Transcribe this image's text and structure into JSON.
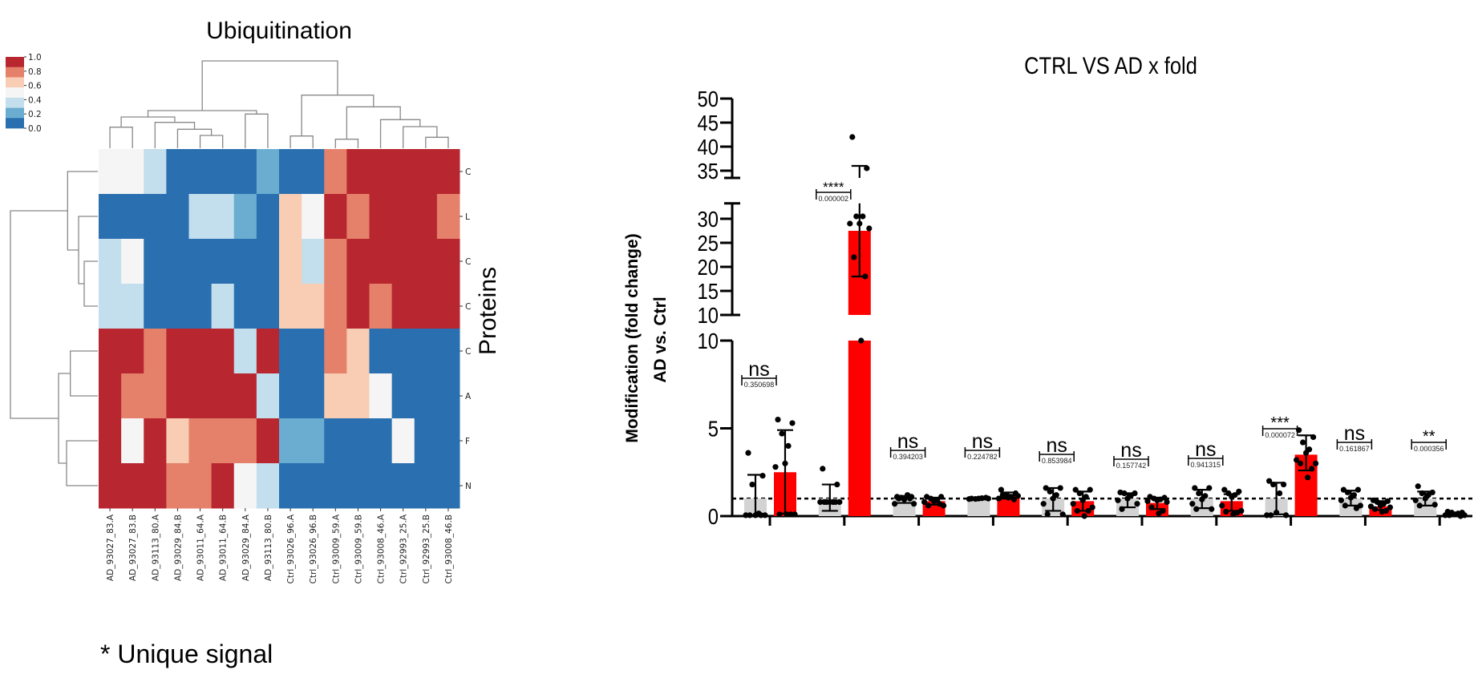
{
  "figure": {
    "footnote": "* Unique signal"
  },
  "chart_data": [
    {
      "type": "heatmap",
      "title": "Ubiquitination",
      "ylabel": "Proteins",
      "columns": [
        "AD_93027_83.A",
        "AD_93027_83.B",
        "AD_93113_80.A",
        "AD_93029_84.B",
        "AD_93011_64.A",
        "AD_93011_64.B",
        "AD_93029_84.A",
        "AD_93113_80.B",
        "Ctrl_93026_96.A",
        "Ctrl_93026_96.B",
        "Ctrl_93009_59.A",
        "Ctrl_93009_59.B",
        "Ctrl_93008_46.A",
        "Ctrl_92993_25.A",
        "Ctrl_92993_25.B",
        "Ctrl_93008_46.B"
      ],
      "row_labels": [
        "C",
        "L",
        "C",
        "C",
        "C",
        "A",
        "F",
        "N"
      ],
      "vmin": 0,
      "vmax": 1,
      "values": [
        [
          0.5,
          0.5,
          0.35,
          0.05,
          0.05,
          0.05,
          0.05,
          0.2,
          0.05,
          0.05,
          0.75,
          0.95,
          0.95,
          0.95,
          0.95,
          0.95
        ],
        [
          0.05,
          0.05,
          0.05,
          0.05,
          0.35,
          0.35,
          0.2,
          0.05,
          0.6,
          0.5,
          0.95,
          0.75,
          0.95,
          0.95,
          0.95,
          0.75
        ],
        [
          0.35,
          0.5,
          0.05,
          0.05,
          0.05,
          0.05,
          0.05,
          0.05,
          0.6,
          0.35,
          0.75,
          0.95,
          0.95,
          0.95,
          0.95,
          0.95
        ],
        [
          0.35,
          0.35,
          0.05,
          0.05,
          0.05,
          0.35,
          0.05,
          0.05,
          0.6,
          0.6,
          0.75,
          0.95,
          0.75,
          0.95,
          0.95,
          0.95
        ],
        [
          0.95,
          0.95,
          0.75,
          0.95,
          0.95,
          0.95,
          0.35,
          0.95,
          0.05,
          0.05,
          0.75,
          0.6,
          0.05,
          0.05,
          0.05,
          0.05
        ],
        [
          0.95,
          0.75,
          0.75,
          0.95,
          0.95,
          0.95,
          0.95,
          0.35,
          0.05,
          0.05,
          0.6,
          0.6,
          0.5,
          0.05,
          0.05,
          0.05
        ],
        [
          0.95,
          0.5,
          0.95,
          0.6,
          0.75,
          0.75,
          0.75,
          0.95,
          0.2,
          0.2,
          0.05,
          0.05,
          0.05,
          0.5,
          0.05,
          0.05
        ],
        [
          0.95,
          0.95,
          0.95,
          0.75,
          0.75,
          0.95,
          0.5,
          0.35,
          0.05,
          0.05,
          0.05,
          0.05,
          0.05,
          0.05,
          0.05,
          0.05
        ]
      ],
      "colorbar": {
        "ticks": [
          "1.0",
          "0.8",
          "0.6",
          "0.4",
          "0.2",
          "0.0"
        ],
        "colors": [
          "#2a6faf",
          "#6aadd1",
          "#c3deec",
          "#f5f5f5",
          "#f8cdb4",
          "#e5816a",
          "#b8262f"
        ]
      },
      "col_dendrogram": [
        [
          0,
          1,
          79
        ],
        [
          4,
          5,
          48
        ],
        [
          3,
          17,
          71
        ],
        [
          2,
          18,
          97
        ],
        [
          16,
          19,
          117
        ],
        [
          6,
          7,
          128
        ],
        [
          20,
          21,
          141
        ],
        [
          8,
          9,
          46
        ],
        [
          10,
          11,
          34
        ],
        [
          14,
          15,
          41
        ],
        [
          13,
          25,
          81
        ],
        [
          12,
          26,
          107
        ],
        [
          24,
          27,
          155
        ],
        [
          23,
          28,
          199
        ],
        [
          22,
          29,
          327
        ]
      ],
      "row_dendrogram": [
        [
          2,
          3,
          51
        ],
        [
          1,
          8,
          72
        ],
        [
          0,
          9,
          113
        ],
        [
          4,
          5,
          103
        ],
        [
          6,
          7,
          117
        ],
        [
          11,
          12,
          147
        ],
        [
          10,
          13,
          327
        ]
      ]
    },
    {
      "type": "bar",
      "title": "CTRL VS AD x fold",
      "ylabel": [
        "Modification (fold change)",
        "AD vs. Ctrl"
      ],
      "yticks": [
        "0",
        "5",
        "10",
        "10",
        "15",
        "20",
        "25",
        "30",
        "35",
        "40",
        "45",
        "50"
      ],
      "ytick_values": [
        0,
        5,
        10,
        10,
        15,
        20,
        25,
        30,
        35,
        40,
        45,
        50
      ],
      "y_segments": [
        [
          0,
          10
        ],
        [
          10,
          33.2
        ],
        [
          33.5,
          50
        ]
      ],
      "reference_line": 1,
      "colors": {
        "ctrl": "#d3d3d3",
        "ad": "#ff0000"
      },
      "series": [
        "CTRL",
        "AD"
      ],
      "groups": [
        {
          "sig": "ns",
          "p": "0.350698",
          "ctrl": {
            "mean": 1.0,
            "error": [
              0.05,
              2.35
            ],
            "points": [
              3.6,
              2.3,
              1.8,
              0.15,
              0.05,
              0.05,
              0.05,
              0.05,
              0.05
            ]
          },
          "ad": {
            "mean": 2.5,
            "error": [
              0.15,
              4.9
            ],
            "points": [
              5.5,
              5.3,
              4.7,
              4.0,
              3.0,
              2.8,
              0.1,
              0.1,
              0.1,
              0.1
            ]
          }
        },
        {
          "sig": "****",
          "p": "0.000002",
          "ctrl": {
            "mean": 1.0,
            "error": [
              0.3,
              1.8
            ],
            "points": [
              2.7,
              1.8,
              0.8,
              0.8,
              0.8,
              0.8,
              0.8,
              0.8,
              0.8
            ]
          },
          "ad": {
            "mean": 27.5,
            "error": [
              18,
              36
            ],
            "points": [
              42,
              35.5,
              30.5,
              30.5,
              29,
              29,
              28,
              22,
              18,
              10
            ]
          }
        },
        {
          "sig": "ns",
          "p": "0.394203",
          "ctrl": {
            "mean": 1.0,
            "error": [
              0.75,
              1.15
            ],
            "points": [
              1.1,
              1.1,
              1.05,
              1.2,
              0.95,
              0.7,
              0.7,
              1.0,
              1.0
            ]
          },
          "ad": {
            "mean": 0.85,
            "error": [
              0.65,
              1.05
            ],
            "points": [
              1.1,
              1.1,
              1.0,
              0.9,
              0.85,
              0.8,
              0.6,
              0.6,
              0.7,
              0.9
            ]
          }
        },
        {
          "sig": "ns",
          "p": "0.224782",
          "ctrl": {
            "mean": 1.0,
            "error": [
              0.95,
              1.05
            ],
            "points": [
              1.0,
              1.05,
              0.98,
              1.02,
              1.0,
              0.97,
              1.0
            ]
          },
          "ad": {
            "mean": 1.15,
            "error": [
              1.0,
              1.35
            ],
            "points": [
              1.5,
              1.3,
              1.2,
              1.1,
              1.05,
              1.0,
              1.15,
              1.2,
              0.95,
              1.1
            ]
          }
        },
        {
          "sig": "ns",
          "p": "0.853984",
          "ctrl": {
            "mean": 1.0,
            "error": [
              0.3,
              1.6
            ],
            "points": [
              1.6,
              1.6,
              1.4,
              1.2,
              1.0,
              0.7,
              0.1,
              0.1
            ]
          },
          "ad": {
            "mean": 0.85,
            "error": [
              0.3,
              1.4
            ],
            "points": [
              1.5,
              1.5,
              1.3,
              1.1,
              0.9,
              0.7,
              0.5,
              0.3,
              0.3,
              0.0
            ]
          }
        },
        {
          "sig": "ns",
          "p": "0.157742",
          "ctrl": {
            "mean": 1.0,
            "error": [
              0.5,
              1.3
            ],
            "points": [
              1.35,
              1.3,
              1.3,
              1.15,
              1.0,
              0.9,
              0.7,
              0.4
            ]
          },
          "ad": {
            "mean": 0.75,
            "error": [
              0.4,
              1.05
            ],
            "points": [
              1.1,
              1.05,
              1.0,
              0.95,
              0.9,
              0.85,
              0.8,
              0.5,
              0.3,
              0.15
            ]
          }
        },
        {
          "sig": "ns",
          "p": "0.941315",
          "ctrl": {
            "mean": 1.0,
            "error": [
              0.45,
              1.5
            ],
            "points": [
              1.6,
              1.6,
              1.3,
              1.15,
              0.95,
              0.7,
              0.4,
              0.4
            ]
          },
          "ad": {
            "mean": 0.85,
            "error": [
              0.3,
              1.25
            ],
            "points": [
              1.5,
              1.4,
              1.3,
              1.2,
              1.1,
              0.6,
              0.3,
              0.25,
              0.2,
              0.1
            ]
          }
        },
        {
          "sig": "***",
          "p": "0.000072",
          "ctrl": {
            "mean": 1.0,
            "error": [
              0.1,
              1.9
            ],
            "points": [
              2.0,
              1.8,
              1.8,
              1.3,
              0.2,
              0.05,
              0.05,
              0.05
            ]
          },
          "ad": {
            "mean": 3.5,
            "error": [
              2.6,
              4.6
            ],
            "points": [
              4.9,
              4.5,
              4.2,
              3.8,
              3.6,
              3.2,
              3.0,
              3.0,
              2.7,
              2.2
            ]
          }
        },
        {
          "sig": "ns",
          "p": "0.161867",
          "ctrl": {
            "mean": 1.0,
            "error": [
              0.6,
              1.45
            ],
            "points": [
              1.5,
              1.5,
              1.35,
              1.2,
              1.05,
              0.9,
              0.6,
              0.6,
              0.45
            ]
          },
          "ad": {
            "mean": 0.55,
            "error": [
              0.35,
              0.85
            ],
            "points": [
              0.9,
              0.85,
              0.8,
              0.7,
              0.6,
              0.55,
              0.5,
              0.4,
              0.3,
              0.25
            ]
          }
        },
        {
          "sig": "**",
          "p": "0.000356",
          "ctrl": {
            "mean": 1.0,
            "error": [
              0.6,
              1.4
            ],
            "points": [
              1.7,
              1.35,
              1.3,
              1.2,
              1.0,
              0.9,
              0.65,
              0.6
            ]
          },
          "ad": {
            "mean": 0.1,
            "error": [
              0.05,
              0.2
            ],
            "points": [
              0.25,
              0.2,
              0.2,
              0.15,
              0.1,
              0.05,
              0.05,
              0.05,
              0.0
            ]
          }
        }
      ]
    }
  ]
}
